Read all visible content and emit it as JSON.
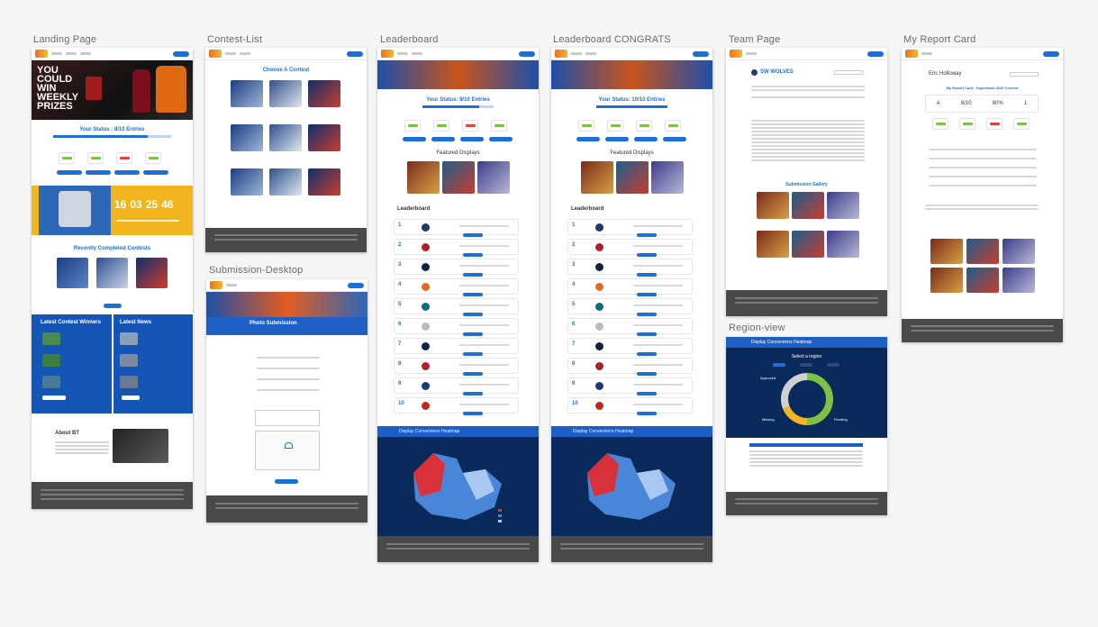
{
  "artboards": {
    "landing": {
      "title": "Landing Page",
      "hero_text": "YOU COULD WIN WEEKLY PRIZES",
      "status": "Your Status : 8/10 Entries",
      "countdown": [
        "16",
        "03",
        "25",
        "46"
      ],
      "recent_title": "Recently Completed Contests",
      "winners_title": "Latest Contest Winners",
      "news_title": "Latest News",
      "about_title": "About BT"
    },
    "contest_list": {
      "title": "Contest-List",
      "heading": "Choose A Contest"
    },
    "submission": {
      "title": "Submission-Desktop",
      "heading": "Photo Submission"
    },
    "leaderboard": {
      "title": "Leaderboard",
      "status": "Your Status: 8/10 Entries",
      "featured": "Featured Displays",
      "board": "Leaderboard",
      "heatmap": "Display Conversions Heatmap"
    },
    "leaderboard_congrats": {
      "title": "Leaderboard CONGRATS",
      "status": "Your Status: 10/10 Entries",
      "featured": "Featured Displays",
      "board": "Leaderboard",
      "heatmap": "Display Conversions Heatmap"
    },
    "team": {
      "title": "Team Page",
      "team_name": "SW WOLVES",
      "gallery": "Submission Gallery"
    },
    "region": {
      "title": "Region-view",
      "heading": "Display Conversions Heatmap",
      "select": "Select a region",
      "approved": "Approved",
      "missing": "Missing",
      "pending": "Pending"
    },
    "report": {
      "title": "My Report Card",
      "user": "Eric Holloway",
      "subtitle": "My Report Card - Superbowl 2019 Contest",
      "grade": "A",
      "entries": "8/10",
      "percent": "80%",
      "rank": "1"
    }
  },
  "colors": {
    "blue": "#1d6fd8",
    "dark_navy": "#0b2a5c",
    "footer": "#4a4a4a",
    "gold": "#f2b51e",
    "green": "#7dc242"
  },
  "icons": {
    "logo": "brand-logo-icon"
  }
}
